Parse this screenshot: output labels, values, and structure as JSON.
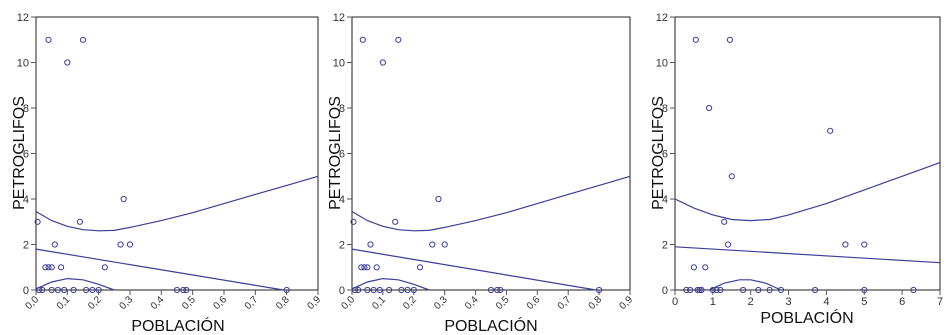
{
  "colors": {
    "points": "#3a3f9a",
    "curves": "#3a3f9a",
    "axes": "#555555",
    "frame": "#222222",
    "text": "#111111"
  },
  "chart_data": [
    {
      "type": "scatter",
      "xlabel": "POBLACIÓN",
      "ylabel": "PETROGLIFOS",
      "xlim": [
        0,
        0.9
      ],
      "ylim": [
        0,
        12
      ],
      "xticks": [
        "0,0",
        "0,1",
        "0,2",
        "0,3",
        "0,4",
        "0,5",
        "0,6",
        "0,7",
        "0,8",
        "0,9"
      ],
      "yticks": [
        "0",
        "2",
        "4",
        "6",
        "8",
        "10",
        "12"
      ],
      "points": [
        [
          0.005,
          3
        ],
        [
          0.01,
          0
        ],
        [
          0.02,
          0
        ],
        [
          0.03,
          1
        ],
        [
          0.04,
          11
        ],
        [
          0.04,
          1
        ],
        [
          0.05,
          1
        ],
        [
          0.05,
          0
        ],
        [
          0.06,
          2
        ],
        [
          0.07,
          0
        ],
        [
          0.08,
          1
        ],
        [
          0.09,
          0
        ],
        [
          0.1,
          10
        ],
        [
          0.12,
          0
        ],
        [
          0.14,
          3
        ],
        [
          0.15,
          11
        ],
        [
          0.16,
          0
        ],
        [
          0.18,
          0
        ],
        [
          0.2,
          0
        ],
        [
          0.22,
          1
        ],
        [
          0.27,
          2
        ],
        [
          0.28,
          4
        ],
        [
          0.3,
          2
        ],
        [
          0.45,
          0
        ],
        [
          0.47,
          0
        ],
        [
          0.48,
          0
        ],
        [
          0.8,
          0
        ]
      ],
      "curves": [
        {
          "kind": "upper",
          "x": [
            0.0,
            0.05,
            0.1,
            0.15,
            0.2,
            0.25,
            0.3,
            0.4,
            0.5,
            0.6,
            0.7,
            0.8,
            0.9
          ],
          "y": [
            3.45,
            3.05,
            2.8,
            2.65,
            2.6,
            2.62,
            2.75,
            3.05,
            3.4,
            3.8,
            4.2,
            4.6,
            5.0
          ]
        },
        {
          "kind": "fit",
          "x": [
            0.0,
            0.79
          ],
          "y": [
            1.8,
            0.0
          ]
        },
        {
          "kind": "lower",
          "x": [
            0.0,
            0.05,
            0.1,
            0.15,
            0.2,
            0.25
          ],
          "y": [
            0.05,
            0.35,
            0.5,
            0.45,
            0.25,
            0.0
          ]
        }
      ]
    },
    {
      "type": "scatter",
      "xlabel": "POBLACIÓN",
      "ylabel": "PETROGLIFOS",
      "xlim": [
        0,
        0.9
      ],
      "ylim": [
        0,
        12
      ],
      "xticks": [
        "0,0",
        "0,1",
        "0,2",
        "0,3",
        "0,4",
        "0,5",
        "0,6",
        "0,7",
        "0,8",
        "0,9"
      ],
      "yticks": [
        "0",
        "2",
        "4",
        "6",
        "8",
        "10",
        "12"
      ],
      "points": [
        [
          0.005,
          3
        ],
        [
          0.01,
          0
        ],
        [
          0.02,
          0
        ],
        [
          0.03,
          1
        ],
        [
          0.035,
          11
        ],
        [
          0.04,
          1
        ],
        [
          0.05,
          1
        ],
        [
          0.05,
          0
        ],
        [
          0.06,
          2
        ],
        [
          0.07,
          0
        ],
        [
          0.08,
          1
        ],
        [
          0.09,
          0
        ],
        [
          0.1,
          10
        ],
        [
          0.12,
          0
        ],
        [
          0.14,
          3
        ],
        [
          0.15,
          11
        ],
        [
          0.16,
          0
        ],
        [
          0.18,
          0
        ],
        [
          0.2,
          0
        ],
        [
          0.22,
          1
        ],
        [
          0.26,
          2
        ],
        [
          0.28,
          4
        ],
        [
          0.3,
          2
        ],
        [
          0.45,
          0
        ],
        [
          0.47,
          0
        ],
        [
          0.48,
          0
        ],
        [
          0.8,
          0
        ]
      ],
      "curves": [
        {
          "kind": "upper",
          "x": [
            0.0,
            0.05,
            0.1,
            0.15,
            0.2,
            0.25,
            0.3,
            0.4,
            0.5,
            0.6,
            0.7,
            0.8,
            0.9
          ],
          "y": [
            3.45,
            3.05,
            2.8,
            2.65,
            2.6,
            2.62,
            2.75,
            3.05,
            3.4,
            3.8,
            4.2,
            4.6,
            5.0
          ]
        },
        {
          "kind": "fit",
          "x": [
            0.0,
            0.79
          ],
          "y": [
            1.8,
            0.0
          ]
        },
        {
          "kind": "lower",
          "x": [
            0.0,
            0.05,
            0.1,
            0.15,
            0.2,
            0.25
          ],
          "y": [
            0.05,
            0.35,
            0.5,
            0.45,
            0.25,
            0.0
          ]
        }
      ]
    },
    {
      "type": "scatter",
      "xlabel": "POBLACIÓN",
      "ylabel": "PETROGLIFOS",
      "xlim": [
        0,
        7
      ],
      "ylim": [
        0,
        12
      ],
      "xticks": [
        "0",
        "1",
        "2",
        "3",
        "4",
        "5",
        "6",
        "7"
      ],
      "yticks": [
        "0",
        "2",
        "4",
        "6",
        "8",
        "10",
        "12"
      ],
      "points": [
        [
          0.3,
          0
        ],
        [
          0.4,
          0
        ],
        [
          0.5,
          1
        ],
        [
          0.55,
          11
        ],
        [
          0.6,
          0
        ],
        [
          0.65,
          0
        ],
        [
          0.7,
          0
        ],
        [
          0.8,
          1
        ],
        [
          0.9,
          8
        ],
        [
          1.0,
          0
        ],
        [
          1.1,
          0
        ],
        [
          1.2,
          0
        ],
        [
          1.3,
          3
        ],
        [
          1.4,
          2
        ],
        [
          1.45,
          11
        ],
        [
          1.5,
          5
        ],
        [
          1.8,
          0
        ],
        [
          2.2,
          0
        ],
        [
          2.5,
          0
        ],
        [
          2.8,
          0
        ],
        [
          3.7,
          0
        ],
        [
          4.1,
          7
        ],
        [
          4.5,
          2
        ],
        [
          5.0,
          2
        ],
        [
          5.0,
          0
        ],
        [
          6.3,
          0
        ]
      ],
      "curves": [
        {
          "kind": "upper",
          "x": [
            0.0,
            0.5,
            1.0,
            1.5,
            2.0,
            2.5,
            3.0,
            4.0,
            5.0,
            6.0,
            7.0
          ],
          "y": [
            4.0,
            3.6,
            3.3,
            3.1,
            3.05,
            3.1,
            3.3,
            3.8,
            4.4,
            5.0,
            5.6
          ]
        },
        {
          "kind": "fit",
          "x": [
            0.0,
            7.0
          ],
          "y": [
            1.9,
            1.2
          ]
        },
        {
          "kind": "lower",
          "x": [
            0.9,
            1.3,
            1.7,
            2.0,
            2.4,
            2.8
          ],
          "y": [
            0.0,
            0.3,
            0.45,
            0.45,
            0.3,
            0.0
          ]
        }
      ]
    }
  ]
}
